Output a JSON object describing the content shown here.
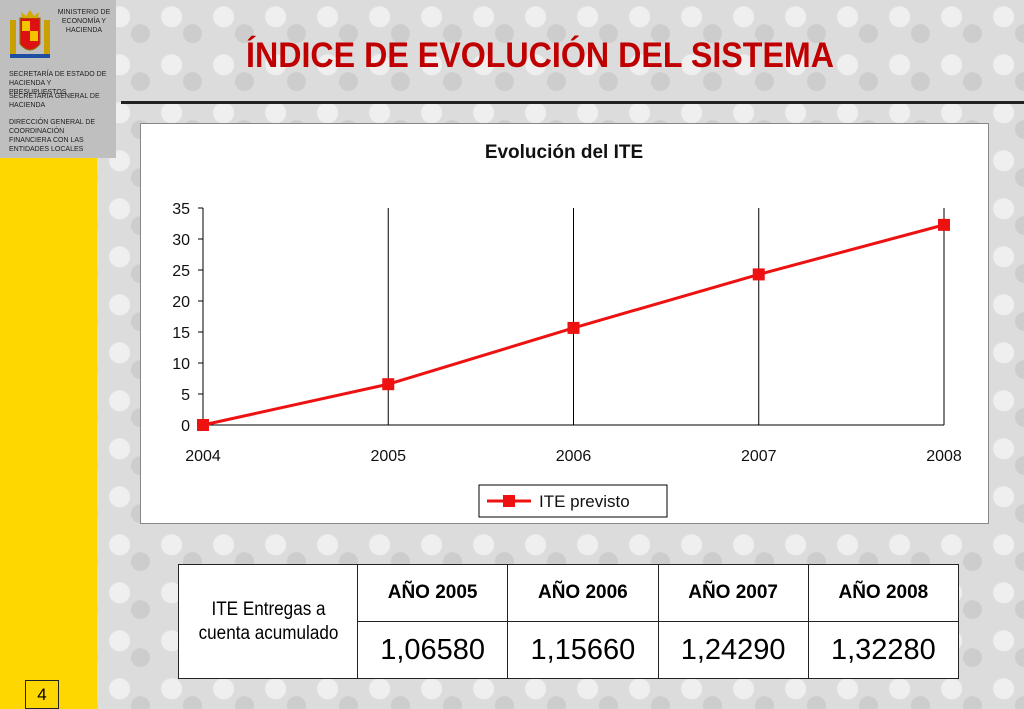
{
  "header": {
    "ministry": [
      "MINISTERIO DE",
      "ECONOMÍA Y",
      "HACIENDA"
    ],
    "sidebar_lines": [
      "SECRETARÍA DE  ESTADO DE HACIENDA Y PRESUPUESTOS",
      "SECRETARÍA GENERAL DE HACIENDA",
      "DIRECCIÓN GENERAL DE COORDINACIÓN FINANCIERA CON  LAS ENTIDADES LOCALES"
    ],
    "title": "ÍNDICE DE EVOLUCIÓN DEL SISTEMA"
  },
  "chart_data": {
    "type": "line",
    "title": "Evolución del ITE",
    "x": [
      2004,
      2005,
      2006,
      2007,
      2008
    ],
    "series": [
      {
        "name": "ITE previsto",
        "values": [
          0,
          6.58,
          15.66,
          24.29,
          32.28
        ],
        "color": "#ee1111"
      }
    ],
    "ylim": [
      0,
      35
    ],
    "yticks": [
      0,
      5,
      10,
      15,
      20,
      25,
      30,
      35
    ],
    "grid": "vertical",
    "legend": "bottom"
  },
  "table": {
    "row_header": "ITE Entregas a cuenta acumulado",
    "years": [
      "AÑO 2005",
      "AÑO 2006",
      "AÑO 2007",
      "AÑO 2008"
    ],
    "values": [
      "1,06580",
      "1,15660",
      "1,24290",
      "1,32280"
    ]
  },
  "page_number": "4"
}
